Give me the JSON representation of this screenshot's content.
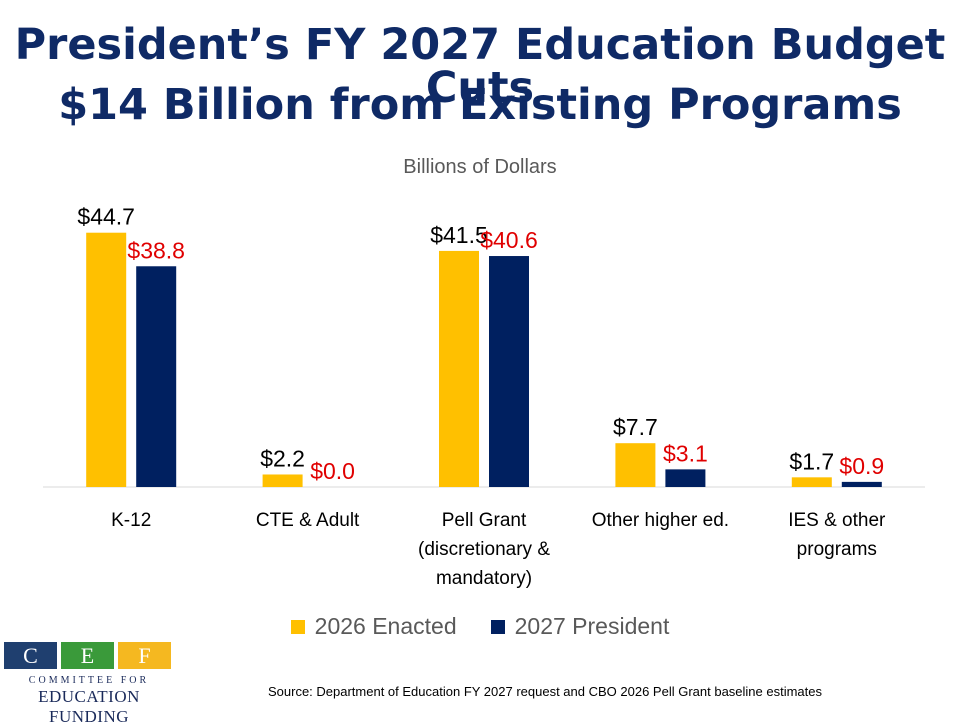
{
  "title_line1": "President’s FY 2027 Education Budget Cuts",
  "title_line2": "$14 Billion from Existing Programs",
  "subtitle": "Billions of Dollars",
  "chart_data": {
    "type": "bar",
    "categories": [
      [
        "K-12"
      ],
      [
        "CTE & Adult"
      ],
      [
        "Pell Grant",
        "(discretionary &",
        "mandatory)"
      ],
      [
        "Other higher ed."
      ],
      [
        "IES & other",
        "programs"
      ]
    ],
    "series": [
      {
        "name": "2026 Enacted",
        "values": [
          44.7,
          2.2,
          41.5,
          7.7,
          1.7
        ],
        "labels": [
          "$44.7",
          "$2.2",
          "$41.5",
          "$7.7",
          "$1.7"
        ],
        "color": "#ffc000",
        "label_color": "#000000"
      },
      {
        "name": "2027 President",
        "values": [
          38.8,
          0.0,
          40.6,
          3.1,
          0.9
        ],
        "labels": [
          "$38.8",
          "$0.0",
          "$40.6",
          "$3.1",
          "$0.9"
        ],
        "color": "#002060",
        "label_color": "#e00000"
      }
    ],
    "ylim": [
      0,
      45
    ],
    "grid": false,
    "legend_position": "bottom"
  },
  "legend": [
    {
      "label": "2026 Enacted",
      "color": "#ffc000"
    },
    {
      "label": "2027 President",
      "color": "#002060"
    }
  ],
  "logo": {
    "letters": [
      "C",
      "E",
      "F"
    ],
    "letter_colors": [
      "#1f3f6f",
      "#3a9a3a",
      "#f5b820"
    ],
    "line1": "COMMITTEE FOR",
    "line2": "EDUCATION FUNDING"
  },
  "source": "Source: Department of Education FY 2027 request and CBO 2026 Pell Grant baseline estimates"
}
